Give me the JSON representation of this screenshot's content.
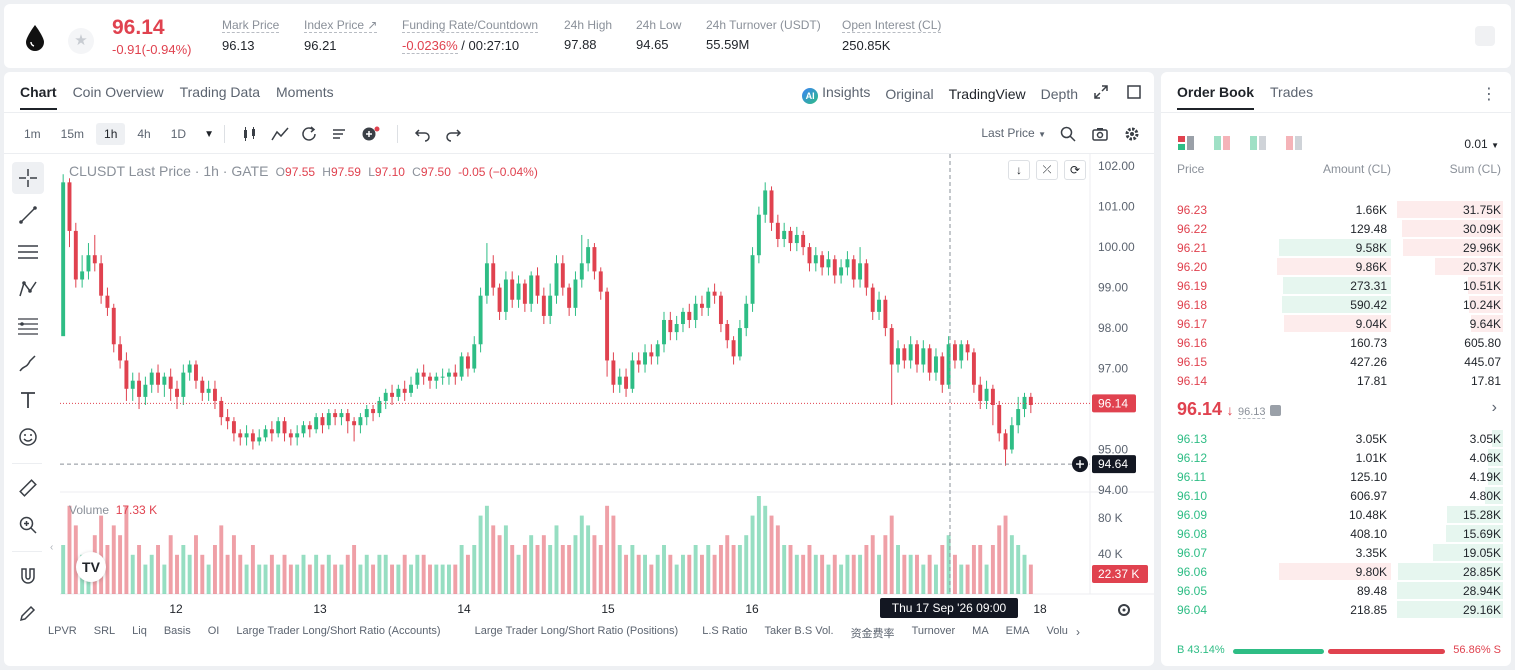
{
  "header": {
    "price": "96.14",
    "change": "-0.91(-0.94%)",
    "stats": [
      {
        "label": "Mark Price",
        "value": "96.13"
      },
      {
        "label": "Index Price ↗",
        "value": "96.21"
      },
      {
        "label": "Funding Rate/Countdown",
        "value_red": "-0.0236%",
        "value": " / 00:27:10"
      },
      {
        "label": "24h High",
        "value": "97.88"
      },
      {
        "label": "24h Low",
        "value": "94.65"
      },
      {
        "label": "24h Turnover (USDT)",
        "value": "55.59M"
      },
      {
        "label": "Open Interest (CL)",
        "value": "250.85K"
      }
    ]
  },
  "chart_tabs": [
    "Chart",
    "Coin Overview",
    "Trading Data",
    "Moments"
  ],
  "chart_views": {
    "insights": "Insights",
    "original": "Original",
    "tradingview": "TradingView",
    "depth": "Depth",
    "ai": "AI"
  },
  "timeframes": [
    "1m",
    "15m",
    "1h",
    "4h",
    "1D"
  ],
  "last_price_selector": "Last Price",
  "legend": {
    "symbol": "CLUSDT Last Price · 1h · GATE",
    "o_lbl": "O",
    "o": "97.55",
    "h_lbl": "H",
    "h": "97.59",
    "l_lbl": "L",
    "l": "97.10",
    "c_lbl": "C",
    "c": "97.50",
    "chg": "-0.05 (−0.04%)"
  },
  "volume_legend": {
    "label": "Volume",
    "value": "17.33 K"
  },
  "price_axis": [
    "102.00",
    "101.00",
    "100.00",
    "99.00",
    "98.00",
    "97.00",
    "95.00",
    "94.00"
  ],
  "vol_axis": [
    "80 K",
    "40 K"
  ],
  "time_axis": [
    "12",
    "13",
    "14",
    "15",
    "16",
    "18"
  ],
  "crosshair": {
    "time": "Thu 17 Sep '26   09:00",
    "price": "94.64"
  },
  "last_price_tag": "96.14",
  "volume_tag": "22.37 K",
  "indicators": [
    "LPVR",
    "SRL",
    "Liq",
    "Basis",
    "OI",
    "Large Trader Long/Short Ratio (Accounts)",
    "Large Trader Long/Short Ratio (Positions)",
    "L.S Ratio",
    "Taker B.S Vol.",
    "资金费率",
    "Turnover",
    "MA",
    "EMA",
    "Volu"
  ],
  "chart_data": {
    "type": "candlestick",
    "symbol": "CLUSDT",
    "interval": "1h",
    "ylim": [
      94.0,
      102.3
    ],
    "points": [
      [
        97.8,
        101.6,
        101.2,
        101.8,
        5
      ],
      [
        101.6,
        100.4,
        100.0,
        101.7,
        9
      ],
      [
        100.4,
        99.2,
        99.0,
        100.6,
        7
      ],
      [
        99.2,
        99.4,
        99.0,
        99.8,
        4
      ],
      [
        99.4,
        99.8,
        99.2,
        100.1,
        3
      ],
      [
        99.8,
        99.6,
        99.4,
        100.3,
        6
      ],
      [
        99.6,
        98.8,
        98.6,
        99.8,
        8
      ],
      [
        98.8,
        98.5,
        98.3,
        99.0,
        5
      ],
      [
        98.5,
        97.6,
        97.4,
        98.6,
        7
      ],
      [
        97.6,
        97.2,
        97.0,
        97.8,
        6
      ],
      [
        97.2,
        96.5,
        96.2,
        97.4,
        9
      ],
      [
        96.5,
        96.7,
        96.2,
        96.9,
        4
      ],
      [
        96.7,
        96.3,
        96.0,
        96.9,
        5
      ],
      [
        96.3,
        96.6,
        96.1,
        96.8,
        3
      ],
      [
        96.6,
        96.9,
        96.4,
        97.0,
        4
      ],
      [
        96.9,
        96.6,
        96.4,
        97.1,
        5
      ],
      [
        96.6,
        96.8,
        96.3,
        96.9,
        3
      ],
      [
        96.8,
        96.5,
        96.2,
        97.0,
        6
      ],
      [
        96.5,
        96.3,
        96.0,
        96.7,
        4
      ],
      [
        96.3,
        96.9,
        96.1,
        97.1,
        5
      ],
      [
        96.9,
        97.1,
        96.7,
        97.2,
        4
      ],
      [
        97.1,
        96.7,
        96.5,
        97.2,
        6
      ],
      [
        96.7,
        96.4,
        96.2,
        96.8,
        4
      ],
      [
        96.4,
        96.5,
        96.2,
        96.7,
        3
      ],
      [
        96.5,
        96.2,
        96.0,
        96.7,
        5
      ],
      [
        96.2,
        95.8,
        95.6,
        96.3,
        7
      ],
      [
        95.8,
        95.7,
        95.5,
        96.0,
        4
      ],
      [
        95.7,
        95.4,
        95.2,
        95.8,
        6
      ],
      [
        95.4,
        95.3,
        95.1,
        95.5,
        4
      ],
      [
        95.3,
        95.4,
        95.1,
        95.6,
        3
      ],
      [
        95.4,
        95.2,
        95.0,
        95.5,
        5
      ],
      [
        95.2,
        95.3,
        95.1,
        95.5,
        3
      ],
      [
        95.3,
        95.5,
        95.2,
        95.6,
        3
      ],
      [
        95.5,
        95.4,
        95.2,
        95.7,
        4
      ],
      [
        95.4,
        95.7,
        95.3,
        95.8,
        3
      ],
      [
        95.7,
        95.4,
        95.2,
        95.8,
        4
      ],
      [
        95.4,
        95.3,
        95.1,
        95.5,
        3
      ],
      [
        95.3,
        95.4,
        95.1,
        95.6,
        3
      ],
      [
        95.4,
        95.6,
        95.3,
        95.7,
        4
      ],
      [
        95.6,
        95.5,
        95.3,
        95.7,
        3
      ],
      [
        95.5,
        95.8,
        95.4,
        95.9,
        4
      ],
      [
        95.8,
        95.6,
        95.4,
        95.9,
        3
      ],
      [
        95.6,
        95.9,
        95.5,
        96.0,
        4
      ],
      [
        95.9,
        95.8,
        95.6,
        96.0,
        3
      ],
      [
        95.8,
        95.9,
        95.6,
        96.0,
        3
      ],
      [
        95.9,
        95.7,
        95.4,
        96.0,
        4
      ],
      [
        95.7,
        95.6,
        95.2,
        95.8,
        5
      ],
      [
        95.6,
        95.8,
        95.4,
        95.9,
        3
      ],
      [
        95.8,
        96.0,
        95.6,
        96.1,
        4
      ],
      [
        96.0,
        95.9,
        95.7,
        96.1,
        3
      ],
      [
        95.9,
        96.2,
        95.8,
        96.3,
        4
      ],
      [
        96.2,
        96.4,
        96.0,
        96.5,
        4
      ],
      [
        96.4,
        96.3,
        96.1,
        96.6,
        3
      ],
      [
        96.3,
        96.5,
        96.2,
        96.6,
        3
      ],
      [
        96.5,
        96.4,
        96.2,
        96.7,
        4
      ],
      [
        96.4,
        96.6,
        96.3,
        96.8,
        3
      ],
      [
        96.6,
        96.9,
        96.5,
        97.0,
        4
      ],
      [
        96.9,
        96.8,
        96.6,
        97.1,
        4
      ],
      [
        96.8,
        96.7,
        96.5,
        96.9,
        3
      ],
      [
        96.7,
        96.8,
        96.5,
        96.9,
        3
      ],
      [
        96.8,
        96.8,
        96.6,
        97.0,
        3
      ],
      [
        96.8,
        96.9,
        96.6,
        97.0,
        3
      ],
      [
        96.9,
        96.8,
        96.6,
        97.1,
        3
      ],
      [
        96.8,
        97.3,
        96.7,
        97.4,
        5
      ],
      [
        97.3,
        97.0,
        96.8,
        97.4,
        4
      ],
      [
        97.0,
        97.6,
        96.9,
        97.8,
        5
      ],
      [
        97.6,
        98.8,
        97.4,
        99.0,
        8
      ],
      [
        98.8,
        99.6,
        98.6,
        100.1,
        9
      ],
      [
        99.6,
        99.0,
        98.8,
        99.8,
        7
      ],
      [
        99.0,
        98.4,
        98.2,
        99.1,
        6
      ],
      [
        98.4,
        99.2,
        98.2,
        99.4,
        7
      ],
      [
        99.2,
        98.7,
        98.5,
        99.4,
        5
      ],
      [
        98.7,
        99.1,
        98.5,
        99.3,
        4
      ],
      [
        99.1,
        98.6,
        98.4,
        99.2,
        5
      ],
      [
        98.6,
        99.3,
        98.4,
        99.4,
        6
      ],
      [
        99.3,
        98.8,
        98.6,
        99.5,
        5
      ],
      [
        98.8,
        98.3,
        98.1,
        99.0,
        6
      ],
      [
        98.3,
        98.8,
        98.1,
        99.1,
        5
      ],
      [
        98.8,
        99.6,
        98.6,
        99.8,
        7
      ],
      [
        99.6,
        99.0,
        98.8,
        99.8,
        5
      ],
      [
        99.0,
        98.5,
        98.3,
        99.1,
        5
      ],
      [
        98.5,
        99.2,
        98.3,
        99.4,
        6
      ],
      [
        99.2,
        99.6,
        99.0,
        100.3,
        8
      ],
      [
        99.6,
        100.0,
        99.4,
        100.2,
        7
      ],
      [
        100.0,
        99.4,
        99.2,
        100.1,
        6
      ],
      [
        99.4,
        98.9,
        98.7,
        99.5,
        5
      ],
      [
        98.9,
        97.2,
        96.8,
        99.0,
        9
      ],
      [
        97.2,
        96.6,
        96.4,
        97.4,
        8
      ],
      [
        96.6,
        96.8,
        96.4,
        97.0,
        5
      ],
      [
        96.8,
        96.5,
        96.3,
        97.0,
        4
      ],
      [
        96.5,
        97.2,
        96.4,
        97.4,
        5
      ],
      [
        97.2,
        97.1,
        96.9,
        97.4,
        4
      ],
      [
        97.1,
        97.4,
        96.9,
        97.6,
        4
      ],
      [
        97.4,
        97.3,
        97.1,
        97.6,
        3
      ],
      [
        97.3,
        97.6,
        97.1,
        97.7,
        4
      ],
      [
        97.6,
        98.2,
        97.4,
        98.4,
        5
      ],
      [
        98.2,
        97.9,
        97.7,
        98.4,
        4
      ],
      [
        97.9,
        98.1,
        97.7,
        98.3,
        3
      ],
      [
        98.1,
        98.4,
        97.9,
        98.5,
        4
      ],
      [
        98.4,
        98.2,
        98.0,
        98.6,
        4
      ],
      [
        98.2,
        98.6,
        98.0,
        98.8,
        5
      ],
      [
        98.6,
        98.5,
        98.3,
        98.8,
        4
      ],
      [
        98.5,
        98.9,
        98.3,
        99.0,
        5
      ],
      [
        98.9,
        98.8,
        98.6,
        99.1,
        4
      ],
      [
        98.8,
        98.1,
        97.9,
        98.9,
        5
      ],
      [
        98.1,
        97.7,
        97.5,
        98.2,
        6
      ],
      [
        97.7,
        97.3,
        97.1,
        97.8,
        5
      ],
      [
        97.3,
        98.0,
        97.2,
        98.2,
        5
      ],
      [
        98.0,
        98.6,
        97.8,
        98.8,
        6
      ],
      [
        98.6,
        99.8,
        98.4,
        100.0,
        8
      ],
      [
        99.8,
        100.8,
        99.6,
        101.0,
        10
      ],
      [
        100.8,
        101.4,
        100.6,
        101.6,
        9
      ],
      [
        101.4,
        100.6,
        100.4,
        101.5,
        8
      ],
      [
        100.6,
        100.2,
        100.0,
        100.8,
        7
      ],
      [
        100.2,
        100.4,
        100.0,
        100.6,
        5
      ],
      [
        100.4,
        100.1,
        99.9,
        100.5,
        5
      ],
      [
        100.1,
        100.3,
        99.9,
        100.5,
        4
      ],
      [
        100.3,
        100.0,
        99.8,
        100.4,
        4
      ],
      [
        100.0,
        99.6,
        99.4,
        100.1,
        5
      ],
      [
        99.6,
        99.8,
        99.4,
        100.0,
        4
      ],
      [
        99.8,
        99.5,
        99.3,
        99.9,
        4
      ],
      [
        99.5,
        99.7,
        99.3,
        99.9,
        3
      ],
      [
        99.7,
        99.3,
        99.1,
        99.8,
        4
      ],
      [
        99.3,
        99.5,
        99.1,
        99.7,
        3
      ],
      [
        99.5,
        99.7,
        99.3,
        99.9,
        4
      ],
      [
        99.7,
        99.2,
        99.0,
        99.8,
        4
      ],
      [
        99.2,
        99.6,
        99.0,
        100.0,
        4
      ],
      [
        99.6,
        99.0,
        98.8,
        99.7,
        5
      ],
      [
        99.0,
        98.4,
        98.2,
        99.1,
        6
      ],
      [
        98.4,
        98.7,
        98.2,
        98.9,
        4
      ],
      [
        98.7,
        98.0,
        97.8,
        98.8,
        6
      ],
      [
        98.0,
        97.1,
        96.1,
        98.1,
        8
      ],
      [
        97.1,
        97.5,
        96.9,
        97.7,
        5
      ],
      [
        97.5,
        97.2,
        97.0,
        97.6,
        4
      ],
      [
        97.2,
        97.6,
        97.0,
        97.8,
        4
      ],
      [
        97.6,
        97.1,
        96.9,
        97.7,
        4
      ],
      [
        97.1,
        97.5,
        96.9,
        97.7,
        3
      ],
      [
        97.5,
        96.9,
        96.7,
        97.6,
        4
      ],
      [
        96.9,
        97.3,
        96.7,
        97.5,
        3
      ],
      [
        97.3,
        96.6,
        96.4,
        97.4,
        5
      ],
      [
        96.6,
        97.6,
        96.5,
        97.8,
        6
      ],
      [
        97.6,
        97.2,
        97.0,
        97.7,
        4
      ],
      [
        97.2,
        97.6,
        97.0,
        97.7,
        3
      ],
      [
        97.6,
        97.4,
        97.2,
        97.7,
        3
      ],
      [
        97.4,
        96.6,
        96.4,
        97.5,
        5
      ],
      [
        96.6,
        96.2,
        96.0,
        96.8,
        5
      ],
      [
        96.2,
        96.5,
        96.0,
        96.7,
        3
      ],
      [
        96.5,
        96.1,
        95.6,
        96.6,
        5
      ],
      [
        96.1,
        95.4,
        95.2,
        96.2,
        7
      ],
      [
        95.4,
        95.0,
        94.6,
        95.5,
        8
      ],
      [
        95.0,
        95.6,
        94.9,
        95.8,
        6
      ],
      [
        95.6,
        96.0,
        95.4,
        96.3,
        5
      ],
      [
        96.0,
        96.3,
        95.8,
        96.4,
        4
      ],
      [
        96.3,
        96.1,
        95.9,
        96.4,
        3
      ]
    ]
  },
  "orderbook": {
    "tabs": [
      "Order Book",
      "Trades"
    ],
    "precision": "0.01",
    "headers": {
      "price": "Price",
      "amount": "Amount (CL)",
      "sum": "Sum (CL)"
    },
    "asks": [
      {
        "p": "96.23",
        "a": "1.66K",
        "s": "31.75K",
        "ab": 0.0,
        "sb": 1.0
      },
      {
        "p": "96.22",
        "a": "129.48",
        "s": "30.09K",
        "ab": 0.0,
        "sb": 0.95
      },
      {
        "p": "96.21",
        "a": "9.58K",
        "s": "29.96K",
        "ab": 0.98,
        "sb": 0.94
      },
      {
        "p": "96.20",
        "a": "9.86K",
        "s": "20.37K",
        "ab": 1.0,
        "sb": 0.64
      },
      {
        "p": "96.19",
        "a": "273.31",
        "s": "10.51K",
        "ab": 0.95,
        "sb": 0.33
      },
      {
        "p": "96.18",
        "a": "590.42",
        "s": "10.24K",
        "ab": 0.96,
        "sb": 0.32
      },
      {
        "p": "96.17",
        "a": "9.04K",
        "s": "9.64K",
        "ab": 0.94,
        "sb": 0.3
      },
      {
        "p": "96.16",
        "a": "160.73",
        "s": "605.80",
        "ab": 0.0,
        "sb": 0.0
      },
      {
        "p": "96.15",
        "a": "427.26",
        "s": "445.07",
        "ab": 0.0,
        "sb": 0.0
      },
      {
        "p": "96.14",
        "a": "17.81",
        "s": "17.81",
        "ab": 0.0,
        "sb": 0.0
      }
    ],
    "mid": {
      "price": "96.14",
      "arrow": "↓",
      "mark": "96.13"
    },
    "bids": [
      {
        "p": "96.13",
        "a": "3.05K",
        "s": "3.05K",
        "ab": 0.0,
        "sb": 0.1
      },
      {
        "p": "96.12",
        "a": "1.01K",
        "s": "4.06K",
        "ab": 0.0,
        "sb": 0.14
      },
      {
        "p": "96.11",
        "a": "125.10",
        "s": "4.19K",
        "ab": 0.0,
        "sb": 0.14
      },
      {
        "p": "96.10",
        "a": "606.97",
        "s": "4.80K",
        "ab": 0.0,
        "sb": 0.17
      },
      {
        "p": "96.09",
        "a": "10.48K",
        "s": "15.28K",
        "ab": 0.0,
        "sb": 0.53
      },
      {
        "p": "96.08",
        "a": "408.10",
        "s": "15.69K",
        "ab": 0.0,
        "sb": 0.54
      },
      {
        "p": "96.07",
        "a": "3.35K",
        "s": "19.05K",
        "ab": 0.0,
        "sb": 0.66
      },
      {
        "p": "96.06",
        "a": "9.80K",
        "s": "28.85K",
        "ab": 0.98,
        "sb": 0.99
      },
      {
        "p": "96.05",
        "a": "89.48",
        "s": "28.94K",
        "ab": 0.0,
        "sb": 1.0
      },
      {
        "p": "96.04",
        "a": "218.85",
        "s": "29.16K",
        "ab": 0.0,
        "sb": 1.0
      }
    ],
    "ratio": {
      "buy": "B 43.14%",
      "sell": "56.86% S",
      "buy_frac": 0.4314
    }
  },
  "colors": {
    "up": "#2ebd85",
    "down": "#e0424f",
    "up_bar": "#e6f6ef",
    "down_bar": "#fdecec"
  }
}
